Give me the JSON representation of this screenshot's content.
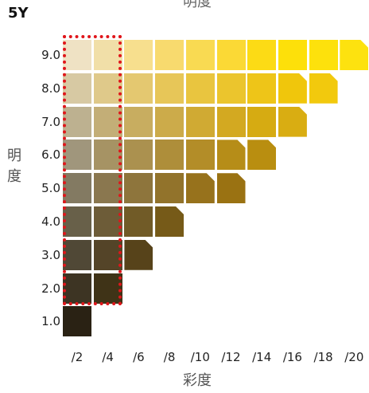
{
  "hue": "5Y",
  "top_cut_text": "明度",
  "y_axis_title": "明度",
  "x_axis_title": "彩度",
  "value_ticks": [
    "9.0",
    "8.0",
    "7.0",
    "6.0",
    "5.0",
    "4.0",
    "3.0",
    "2.0",
    "1.0"
  ],
  "chroma_ticks": [
    "/2",
    "/4",
    "/6",
    "/8",
    "/10",
    "/12",
    "/14",
    "/16",
    "/18",
    "/20"
  ],
  "highlight_color": "#e0161b",
  "chart_data": {
    "type": "heatmap",
    "title": "5Y",
    "xlabel": "彩度",
    "ylabel": "明度",
    "highlighted_chroma": [
      "/2",
      "/4"
    ],
    "rows": [
      {
        "value": 9.0,
        "chips": [
          {
            "chroma": 2,
            "color": "#efe2c4"
          },
          {
            "chroma": 4,
            "color": "#f1dfa8"
          },
          {
            "chroma": 6,
            "color": "#f7df8e"
          },
          {
            "chroma": 8,
            "color": "#f8da6e"
          },
          {
            "chroma": 10,
            "color": "#f9da52"
          },
          {
            "chroma": 12,
            "color": "#fbd935"
          },
          {
            "chroma": 14,
            "color": "#fcdb15"
          },
          {
            "chroma": 16,
            "color": "#fde00a"
          },
          {
            "chroma": 18,
            "color": "#fde10c"
          },
          {
            "chroma": 20,
            "color": "#fde20f",
            "cut": true
          }
        ]
      },
      {
        "value": 8.0,
        "chips": [
          {
            "chroma": 2,
            "color": "#d7c9a3"
          },
          {
            "chroma": 4,
            "color": "#dfc98a"
          },
          {
            "chroma": 6,
            "color": "#e4c870"
          },
          {
            "chroma": 8,
            "color": "#e7c658"
          },
          {
            "chroma": 10,
            "color": "#e9c53f"
          },
          {
            "chroma": 12,
            "color": "#ebc52d"
          },
          {
            "chroma": 14,
            "color": "#eec518"
          },
          {
            "chroma": 16,
            "color": "#f0c60c",
            "cut": true
          },
          {
            "chroma": 18,
            "color": "#f2c90d",
            "cut": true
          }
        ]
      },
      {
        "value": 7.0,
        "chips": [
          {
            "chroma": 2,
            "color": "#bdb190"
          },
          {
            "chroma": 4,
            "color": "#c3ae77"
          },
          {
            "chroma": 6,
            "color": "#c8ad60"
          },
          {
            "chroma": 8,
            "color": "#ccab4a"
          },
          {
            "chroma": 10,
            "color": "#d0aa33"
          },
          {
            "chroma": 12,
            "color": "#d3a921"
          },
          {
            "chroma": 14,
            "color": "#d6ab12"
          },
          {
            "chroma": 16,
            "color": "#d9ad12",
            "cut": true
          }
        ]
      },
      {
        "value": 6.0,
        "chips": [
          {
            "chroma": 2,
            "color": "#a0967c"
          },
          {
            "chroma": 4,
            "color": "#a69364"
          },
          {
            "chroma": 6,
            "color": "#ab914f"
          },
          {
            "chroma": 8,
            "color": "#ae8e3a"
          },
          {
            "chroma": 10,
            "color": "#b38d28"
          },
          {
            "chroma": 12,
            "color": "#b68d18",
            "cut": true
          },
          {
            "chroma": 14,
            "color": "#b98e10",
            "cut": true
          }
        ]
      },
      {
        "value": 5.0,
        "chips": [
          {
            "chroma": 2,
            "color": "#837a62"
          },
          {
            "chroma": 4,
            "color": "#8a774f"
          },
          {
            "chroma": 6,
            "color": "#8e753c"
          },
          {
            "chroma": 8,
            "color": "#92732b"
          },
          {
            "chroma": 10,
            "color": "#97721c",
            "cut": true
          },
          {
            "chroma": 12,
            "color": "#9a7212",
            "cut": true
          }
        ]
      },
      {
        "value": 4.0,
        "chips": [
          {
            "chroma": 2,
            "color": "#686049"
          },
          {
            "chroma": 4,
            "color": "#6d5c38"
          },
          {
            "chroma": 6,
            "color": "#715b27"
          },
          {
            "chroma": 8,
            "color": "#765a18",
            "cut": true
          }
        ]
      },
      {
        "value": 3.0,
        "chips": [
          {
            "chroma": 2,
            "color": "#504836"
          },
          {
            "chroma": 4,
            "color": "#544428"
          },
          {
            "chroma": 6,
            "color": "#57431a",
            "cut": true
          }
        ]
      },
      {
        "value": 2.0,
        "chips": [
          {
            "chroma": 2,
            "color": "#3d3423"
          },
          {
            "chroma": 4,
            "color": "#3f3317"
          }
        ]
      },
      {
        "value": 1.0,
        "chips": [
          {
            "chroma": 2,
            "color": "#2a2214"
          }
        ]
      }
    ]
  }
}
